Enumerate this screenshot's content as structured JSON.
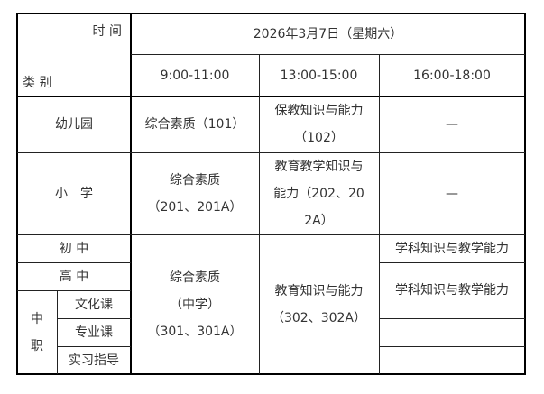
{
  "header": {
    "time_label": "时 间",
    "category_label": "类 别",
    "date": "2026年3月7日（星期六）",
    "slots": [
      "9:00-11:00",
      "13:00-15:00",
      "16:00-18:00"
    ]
  },
  "rows": {
    "kindergarten": {
      "label": "幼儿园",
      "slot1": "综合素质（101）",
      "slot2": [
        "保教知识与能力",
        "（102）"
      ],
      "slot3": "—"
    },
    "primary": {
      "label": "小　学",
      "slot1": [
        "综合素质",
        "（201、201A）"
      ],
      "slot2": [
        "教育教学知识与",
        "能力（202、20",
        "2A）"
      ],
      "slot3": "—"
    },
    "junior": {
      "label": "初 中",
      "slot3": "学科知识与教学能力"
    },
    "senior": {
      "label": "高 中",
      "slot3": "学科知识与教学能力"
    },
    "vocational": {
      "label": [
        "中",
        "职"
      ],
      "sub": [
        "文化课",
        "专业课",
        "实习指导"
      ]
    },
    "secondary_slot1": [
      "综合素质",
      "（中学）",
      "（301、301A）"
    ],
    "secondary_slot2": [
      "教育知识与能力",
      "（302、302A）"
    ]
  }
}
